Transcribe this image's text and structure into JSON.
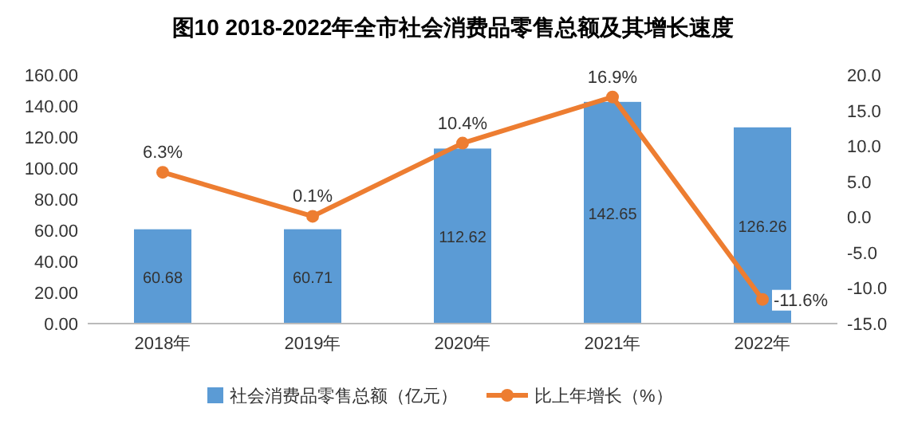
{
  "chart_data": {
    "type": "bar",
    "title": "图10   2018-2022年全市社会消费品零售总额及其增长速度",
    "categories": [
      "2018年",
      "2019年",
      "2020年",
      "2021年",
      "2022年"
    ],
    "series": [
      {
        "name": "社会消费品零售总额（亿元）",
        "color": "#5b9bd5",
        "values": [
          60.68,
          60.71,
          112.62,
          142.65,
          126.26
        ],
        "value_labels": [
          "60.68",
          "60.71",
          "112.62",
          "142.65",
          "126.26"
        ]
      },
      {
        "name": "比上年增长（%）",
        "type": "line",
        "axis": "y2",
        "color": "#ed7d31",
        "values": [
          6.3,
          0.1,
          10.4,
          16.9,
          -11.6
        ],
        "value_labels": [
          "6.3%",
          "0.1%",
          "10.4%",
          "16.9%",
          "-11.6%"
        ]
      }
    ],
    "ylim": [
      0,
      160
    ],
    "yticks": [
      {
        "value": 0,
        "label": "0.00"
      },
      {
        "value": 20,
        "label": "20.00"
      },
      {
        "value": 40,
        "label": "40.00"
      },
      {
        "value": 60,
        "label": "60.00"
      },
      {
        "value": 80,
        "label": "80.00"
      },
      {
        "value": 100,
        "label": "100.00"
      },
      {
        "value": 120,
        "label": "120.00"
      },
      {
        "value": 140,
        "label": "140.00"
      },
      {
        "value": 160,
        "label": "160.00"
      }
    ],
    "y2lim": [
      -15,
      20
    ],
    "y2ticks": [
      {
        "value": -15,
        "label": "-15.0"
      },
      {
        "value": -10,
        "label": "-10.0"
      },
      {
        "value": -5,
        "label": "-5.0"
      },
      {
        "value": 0,
        "label": "0.0"
      },
      {
        "value": 5,
        "label": "5.0"
      },
      {
        "value": 10,
        "label": "10.0"
      },
      {
        "value": 15,
        "label": "15.0"
      },
      {
        "value": 20,
        "label": "20.0"
      }
    ],
    "legend": "bottom",
    "marker": "circle",
    "line_style": "solid",
    "grid": false
  }
}
